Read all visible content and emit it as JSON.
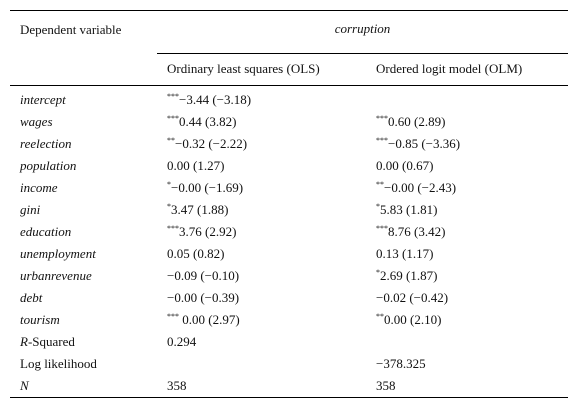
{
  "table": {
    "header": {
      "dep_label": "Dependent variable",
      "group_title": "corruption",
      "col_ols": "Ordinary least squares (OLS)",
      "col_olm": "Ordered logit model (OLM)"
    },
    "rows": [
      {
        "name": "intercept",
        "italic": true,
        "ols_stars": "***",
        "ols": "−3.44 (−3.18)",
        "olm_stars": "",
        "olm": ""
      },
      {
        "name": "wages",
        "italic": true,
        "ols_stars": "***",
        "ols": "0.44 (3.82)",
        "olm_stars": "***",
        "olm": "0.60 (2.89)"
      },
      {
        "name": "reelection",
        "italic": true,
        "ols_stars": "**",
        "ols": "−0.32 (−2.22)",
        "olm_stars": "***",
        "olm": "−0.85 (−3.36)"
      },
      {
        "name": "population",
        "italic": true,
        "ols_stars": "",
        "ols": "0.00 (1.27)",
        "olm_stars": "",
        "olm": "0.00 (0.67)"
      },
      {
        "name": "income",
        "italic": true,
        "ols_stars": "*",
        "ols": "−0.00 (−1.69)",
        "olm_stars": "**",
        "olm": "−0.00 (−2.43)"
      },
      {
        "name": "gini",
        "italic": true,
        "ols_stars": "*",
        "ols": "3.47 (1.88)",
        "olm_stars": "*",
        "olm": "5.83 (1.81)"
      },
      {
        "name": "education",
        "italic": true,
        "ols_stars": "***",
        "ols": "3.76 (2.92)",
        "olm_stars": "***",
        "olm": "8.76 (3.42)"
      },
      {
        "name": "unemployment",
        "italic": true,
        "ols_stars": "",
        "ols": "0.05 (0.82)",
        "olm_stars": "",
        "olm": "0.13 (1.17)"
      },
      {
        "name": "urbanrevenue",
        "italic": true,
        "ols_stars": "",
        "ols": "−0.09 (−0.10)",
        "olm_stars": "*",
        "olm": "2.69 (1.87)"
      },
      {
        "name": "debt",
        "italic": true,
        "ols_stars": "",
        "ols": "−0.00 (−0.39)",
        "olm_stars": "",
        "olm": "−0.02 (−0.42)"
      },
      {
        "name": "tourism",
        "italic": true,
        "ols_stars": "***",
        "ols": " 0.00 (2.97)",
        "olm_stars": "**",
        "olm": "0.00 (2.10)"
      }
    ],
    "stats": {
      "rsq_label_italic": "R",
      "rsq_label_rest": "-Squared",
      "rsq_ols": "0.294",
      "rsq_olm": "",
      "ll_label": "Log likelihood",
      "ll_ols": "",
      "ll_olm": "−378.325",
      "n_label": "N",
      "n_ols": "358",
      "n_olm": "358"
    }
  }
}
